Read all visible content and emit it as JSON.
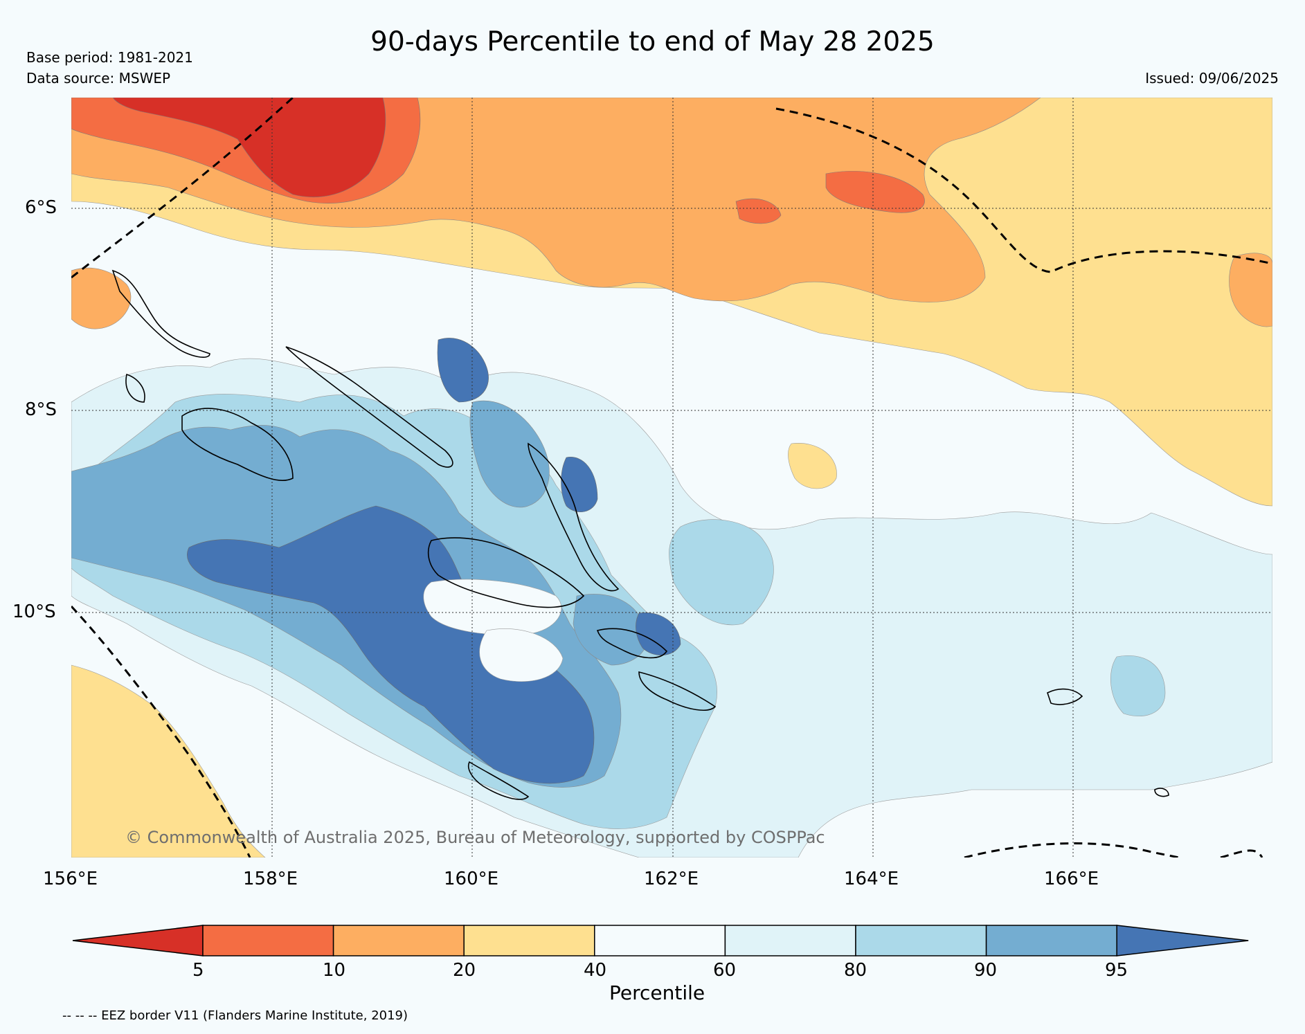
{
  "title": "90-days Percentile to end of May 28 2025",
  "base_period": "Base period: 1981-2021",
  "data_source": "Data source: MSWEP",
  "issued": "Issued: 09/06/2025",
  "copyright": "© Commonwealth of Australia 2025, Bureau of Meteorology, supported by COSPPac",
  "eez_note": "-- -- -- EEZ border V11 (Flanders Marine Institute, 2019)",
  "lat_labels": [
    "6°S",
    "8°S",
    "10°S"
  ],
  "lon_labels": [
    "156°E",
    "158°E",
    "160°E",
    "162°E",
    "164°E",
    "166°E"
  ],
  "colorbar": {
    "label": "Percentile",
    "ticks": [
      "5",
      "10",
      "20",
      "40",
      "60",
      "80",
      "90",
      "95"
    ],
    "colors": [
      "#d73027",
      "#f46d43",
      "#fdae61",
      "#fee090",
      "#f5fbfd",
      "#e0f3f8",
      "#abd9e9",
      "#74add1",
      "#4575b4"
    ]
  }
}
